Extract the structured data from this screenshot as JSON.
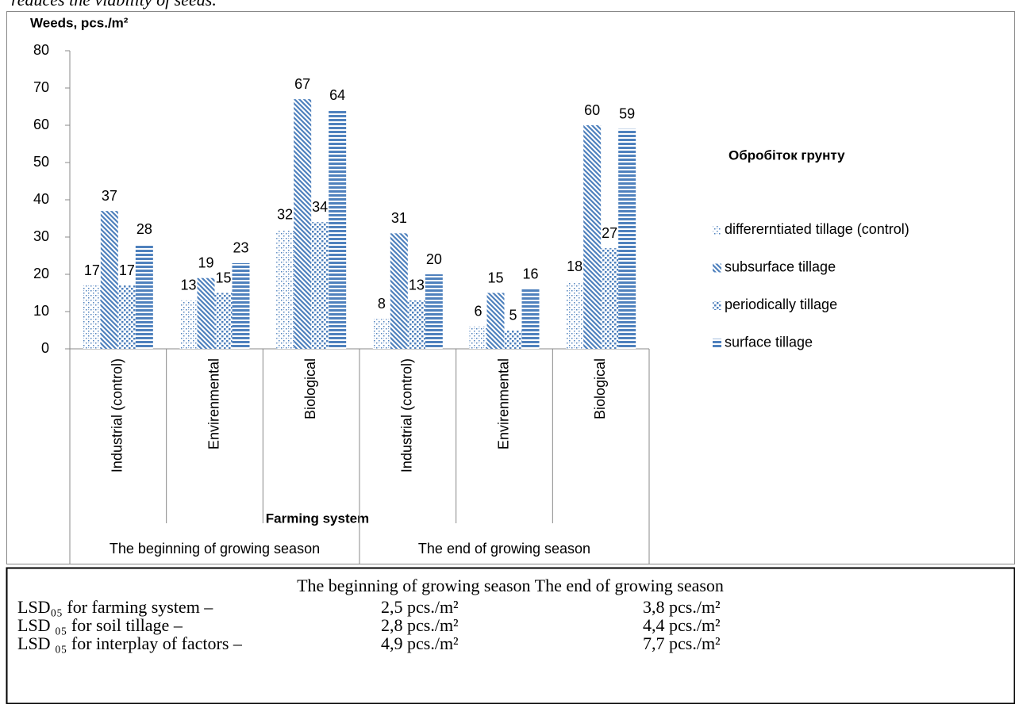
{
  "intro": "reduces the viability of seeds.",
  "chart_data": {
    "type": "bar",
    "y_label": "Weeds, pcs./m²",
    "x_label": "Farming system",
    "legend_title": "Обробіток грунту",
    "categories": [
      "Industrial (control)",
      "Envirenmental",
      "Biological",
      "Industrial (control)",
      "Envirenmental",
      "Biological"
    ],
    "groups": [
      "The beginning of growing season",
      "The end of growing season"
    ],
    "series": [
      {
        "name": "differerntiated tillage (control)",
        "color": "#4f81bd",
        "values": [
          17,
          13,
          32,
          8,
          6,
          18
        ]
      },
      {
        "name": "subsurface tillage",
        "color": "#4f81bd",
        "values": [
          37,
          19,
          67,
          31,
          15,
          60
        ]
      },
      {
        "name": "periodically tillage",
        "color": "#4f81bd",
        "values": [
          17,
          15,
          34,
          13,
          5,
          27
        ]
      },
      {
        "name": "surface tillage",
        "color": "#4f81bd",
        "values": [
          28,
          23,
          64,
          20,
          16,
          59
        ]
      }
    ],
    "ylim": [
      0,
      80
    ],
    "yticks": [
      0,
      10,
      20,
      30,
      40,
      50,
      60,
      70,
      80
    ]
  },
  "table": {
    "header": "The beginning of growing season The end of growing season",
    "rows": [
      [
        "LSD₀₅ for farming system –",
        "2,5  pcs./m²",
        "3,8  pcs./m²"
      ],
      [
        "LSD ₀₅  for  soil tillage –",
        "2,8  pcs./m²",
        "4,4  pcs./m²"
      ],
      [
        "LSD ₀₅  for  interplay of factors –",
        "4,9  pcs./m²",
        "7,7  pcs./m²"
      ]
    ]
  }
}
